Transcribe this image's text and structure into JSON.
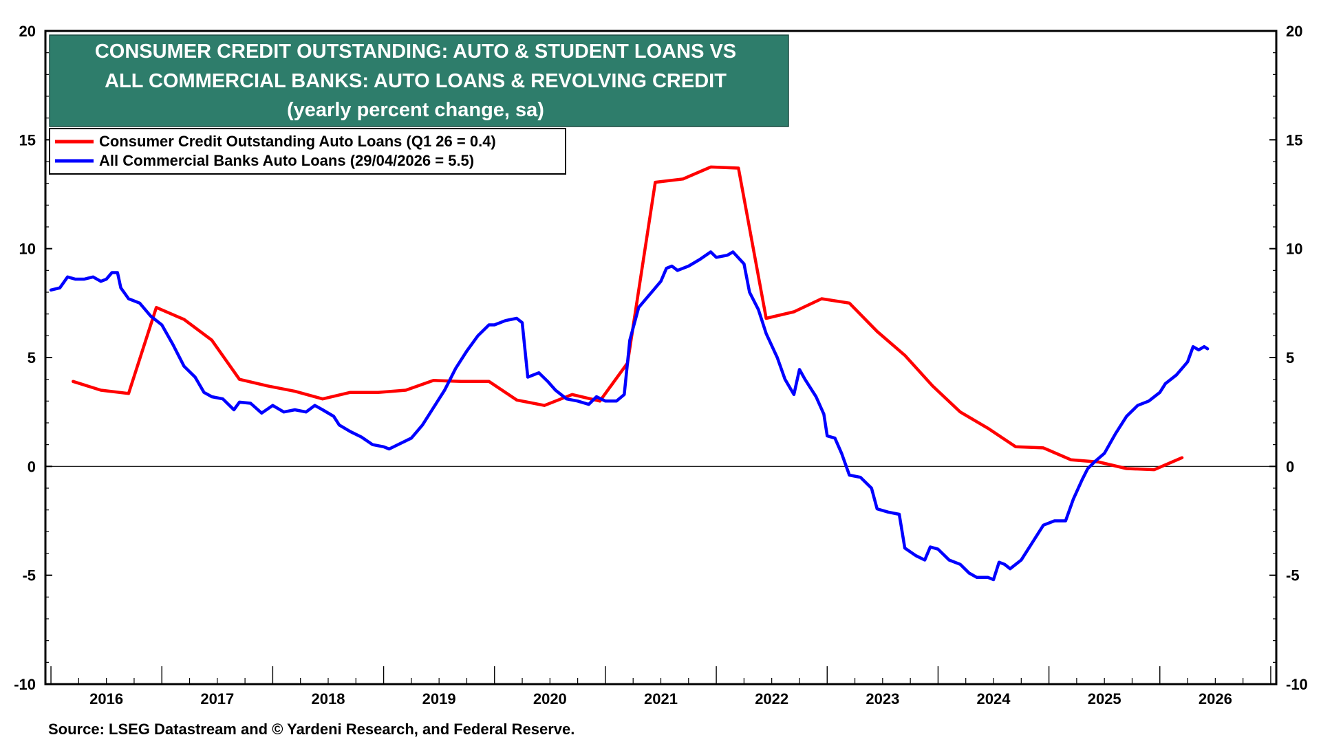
{
  "chart_data": {
    "type": "line",
    "title_lines": [
      "CONSUMER CREDIT OUTSTANDING: AUTO & STUDENT LOANS VS",
      "ALL COMMERCIAL BANKS: AUTO LOANS & REVOLVING CREDIT",
      "(yearly percent change, sa)"
    ],
    "ylim": [
      -10,
      20
    ],
    "xlim": [
      2015.45,
      2026.55
    ],
    "y_ticks": [
      20,
      15,
      10,
      5,
      0,
      -5,
      -10
    ],
    "y_tick_labels": [
      "20",
      "15",
      "10",
      "5",
      "0",
      "-5",
      "-10"
    ],
    "x_year_labels": [
      "2016",
      "2017",
      "2018",
      "2019",
      "2020",
      "2021",
      "2022",
      "2023",
      "2024",
      "2025",
      "2026"
    ],
    "legend": [
      {
        "name": "Consumer Credit Outstanding Auto Loans  (Q1 26 = 0.4)",
        "color": "#ff0000"
      },
      {
        "name": "All Commercial Banks Auto Loans (29/04/2026 = 5.5)",
        "color": "#0000ff"
      }
    ],
    "grid": false,
    "zero_line": true,
    "legend_position": "top-left",
    "series": [
      {
        "name": "Consumer Credit Outstanding Auto Loans  (Q1 26 = 0.4)",
        "color": "#ff0000",
        "points": [
          [
            2015.7,
            3.9
          ],
          [
            2015.95,
            3.5
          ],
          [
            2016.2,
            3.35
          ],
          [
            2016.45,
            7.3
          ],
          [
            2016.7,
            6.75
          ],
          [
            2016.95,
            5.8
          ],
          [
            2017.2,
            4.0
          ],
          [
            2017.45,
            3.7
          ],
          [
            2017.7,
            3.45
          ],
          [
            2017.95,
            3.1
          ],
          [
            2018.2,
            3.4
          ],
          [
            2018.45,
            3.4
          ],
          [
            2018.7,
            3.5
          ],
          [
            2018.95,
            3.95
          ],
          [
            2019.2,
            3.9
          ],
          [
            2019.45,
            3.9
          ],
          [
            2019.7,
            3.05
          ],
          [
            2019.95,
            2.8
          ],
          [
            2020.2,
            3.3
          ],
          [
            2020.45,
            3.0
          ],
          [
            2020.7,
            4.75
          ],
          [
            2020.95,
            13.05
          ],
          [
            2021.2,
            13.2
          ],
          [
            2021.45,
            13.75
          ],
          [
            2021.7,
            13.7
          ],
          [
            2021.95,
            6.8
          ],
          [
            2022.2,
            7.1
          ],
          [
            2022.45,
            7.7
          ],
          [
            2022.7,
            7.5
          ],
          [
            2022.95,
            6.2
          ],
          [
            2023.2,
            5.1
          ],
          [
            2023.45,
            3.7
          ],
          [
            2023.7,
            2.5
          ],
          [
            2023.95,
            1.75
          ],
          [
            2024.2,
            0.9
          ],
          [
            2024.45,
            0.85
          ],
          [
            2024.7,
            0.3
          ],
          [
            2024.95,
            0.2
          ],
          [
            2025.2,
            -0.1
          ],
          [
            2025.45,
            -0.15
          ],
          [
            2025.7,
            0.4
          ]
        ]
      },
      {
        "name": "All Commercial Banks Auto Loans (29/04/2026 = 5.5)",
        "color": "#0000ff",
        "points": [
          [
            2015.5,
            8.1
          ],
          [
            2015.58,
            8.2
          ],
          [
            2015.65,
            8.7
          ],
          [
            2015.72,
            8.6
          ],
          [
            2015.8,
            8.6
          ],
          [
            2015.88,
            8.7
          ],
          [
            2015.95,
            8.5
          ],
          [
            2016.0,
            8.6
          ],
          [
            2016.05,
            8.9
          ],
          [
            2016.1,
            8.9
          ],
          [
            2016.13,
            8.2
          ],
          [
            2016.2,
            7.7
          ],
          [
            2016.3,
            7.5
          ],
          [
            2016.4,
            6.9
          ],
          [
            2016.5,
            6.5
          ],
          [
            2016.6,
            5.6
          ],
          [
            2016.7,
            4.6
          ],
          [
            2016.8,
            4.1
          ],
          [
            2016.88,
            3.4
          ],
          [
            2016.95,
            3.2
          ],
          [
            2017.05,
            3.1
          ],
          [
            2017.15,
            2.6
          ],
          [
            2017.2,
            2.95
          ],
          [
            2017.3,
            2.9
          ],
          [
            2017.4,
            2.45
          ],
          [
            2017.5,
            2.8
          ],
          [
            2017.6,
            2.5
          ],
          [
            2017.7,
            2.6
          ],
          [
            2017.8,
            2.5
          ],
          [
            2017.88,
            2.8
          ],
          [
            2017.95,
            2.6
          ],
          [
            2018.05,
            2.3
          ],
          [
            2018.1,
            1.9
          ],
          [
            2018.2,
            1.6
          ],
          [
            2018.3,
            1.35
          ],
          [
            2018.4,
            1.0
          ],
          [
            2018.5,
            0.9
          ],
          [
            2018.55,
            0.8
          ],
          [
            2018.65,
            1.05
          ],
          [
            2018.75,
            1.3
          ],
          [
            2018.85,
            1.9
          ],
          [
            2018.95,
            2.7
          ],
          [
            2019.05,
            3.5
          ],
          [
            2019.15,
            4.5
          ],
          [
            2019.25,
            5.3
          ],
          [
            2019.35,
            6.0
          ],
          [
            2019.45,
            6.5
          ],
          [
            2019.5,
            6.5
          ],
          [
            2019.6,
            6.7
          ],
          [
            2019.7,
            6.8
          ],
          [
            2019.75,
            6.6
          ],
          [
            2019.8,
            4.1
          ],
          [
            2019.9,
            4.3
          ],
          [
            2019.98,
            3.9
          ],
          [
            2020.05,
            3.5
          ],
          [
            2020.15,
            3.1
          ],
          [
            2020.25,
            3.0
          ],
          [
            2020.35,
            2.85
          ],
          [
            2020.42,
            3.2
          ],
          [
            2020.5,
            3.0
          ],
          [
            2020.6,
            3.0
          ],
          [
            2020.67,
            3.3
          ],
          [
            2020.72,
            5.8
          ],
          [
            2020.8,
            7.3
          ],
          [
            2020.9,
            7.9
          ],
          [
            2021.0,
            8.5
          ],
          [
            2021.05,
            9.1
          ],
          [
            2021.1,
            9.2
          ],
          [
            2021.15,
            9.0
          ],
          [
            2021.25,
            9.2
          ],
          [
            2021.35,
            9.5
          ],
          [
            2021.45,
            9.85
          ],
          [
            2021.5,
            9.6
          ],
          [
            2021.6,
            9.7
          ],
          [
            2021.65,
            9.85
          ],
          [
            2021.75,
            9.3
          ],
          [
            2021.8,
            8.0
          ],
          [
            2021.88,
            7.2
          ],
          [
            2021.95,
            6.1
          ],
          [
            2022.05,
            5.0
          ],
          [
            2022.12,
            4.0
          ],
          [
            2022.2,
            3.3
          ],
          [
            2022.25,
            4.45
          ],
          [
            2022.3,
            4.0
          ],
          [
            2022.4,
            3.2
          ],
          [
            2022.47,
            2.4
          ],
          [
            2022.5,
            1.4
          ],
          [
            2022.57,
            1.3
          ],
          [
            2022.63,
            0.6
          ],
          [
            2022.7,
            -0.4
          ],
          [
            2022.8,
            -0.5
          ],
          [
            2022.9,
            -1.0
          ],
          [
            2022.95,
            -1.95
          ],
          [
            2023.05,
            -2.1
          ],
          [
            2023.15,
            -2.2
          ],
          [
            2023.2,
            -3.75
          ],
          [
            2023.3,
            -4.1
          ],
          [
            2023.38,
            -4.3
          ],
          [
            2023.43,
            -3.7
          ],
          [
            2023.5,
            -3.8
          ],
          [
            2023.6,
            -4.3
          ],
          [
            2023.7,
            -4.5
          ],
          [
            2023.78,
            -4.9
          ],
          [
            2023.85,
            -5.1
          ],
          [
            2023.95,
            -5.1
          ],
          [
            2024.0,
            -5.2
          ],
          [
            2024.05,
            -4.4
          ],
          [
            2024.1,
            -4.5
          ],
          [
            2024.15,
            -4.7
          ],
          [
            2024.25,
            -4.3
          ],
          [
            2024.35,
            -3.5
          ],
          [
            2024.45,
            -2.7
          ],
          [
            2024.55,
            -2.5
          ],
          [
            2024.65,
            -2.5
          ],
          [
            2024.72,
            -1.5
          ],
          [
            2024.8,
            -0.6
          ],
          [
            2024.85,
            -0.1
          ],
          [
            2024.92,
            0.25
          ],
          [
            2025.0,
            0.6
          ],
          [
            2025.1,
            1.5
          ],
          [
            2025.2,
            2.3
          ],
          [
            2025.3,
            2.8
          ],
          [
            2025.4,
            3.0
          ],
          [
            2025.5,
            3.4
          ],
          [
            2025.55,
            3.8
          ],
          [
            2025.65,
            4.2
          ],
          [
            2025.75,
            4.8
          ],
          [
            2025.8,
            5.5
          ],
          [
            2025.85,
            5.35
          ],
          [
            2025.9,
            5.5
          ],
          [
            2025.93,
            5.4
          ]
        ]
      }
    ]
  },
  "source": "Source: LSEG Datastream and © Yardeni Research, and Federal Reserve."
}
